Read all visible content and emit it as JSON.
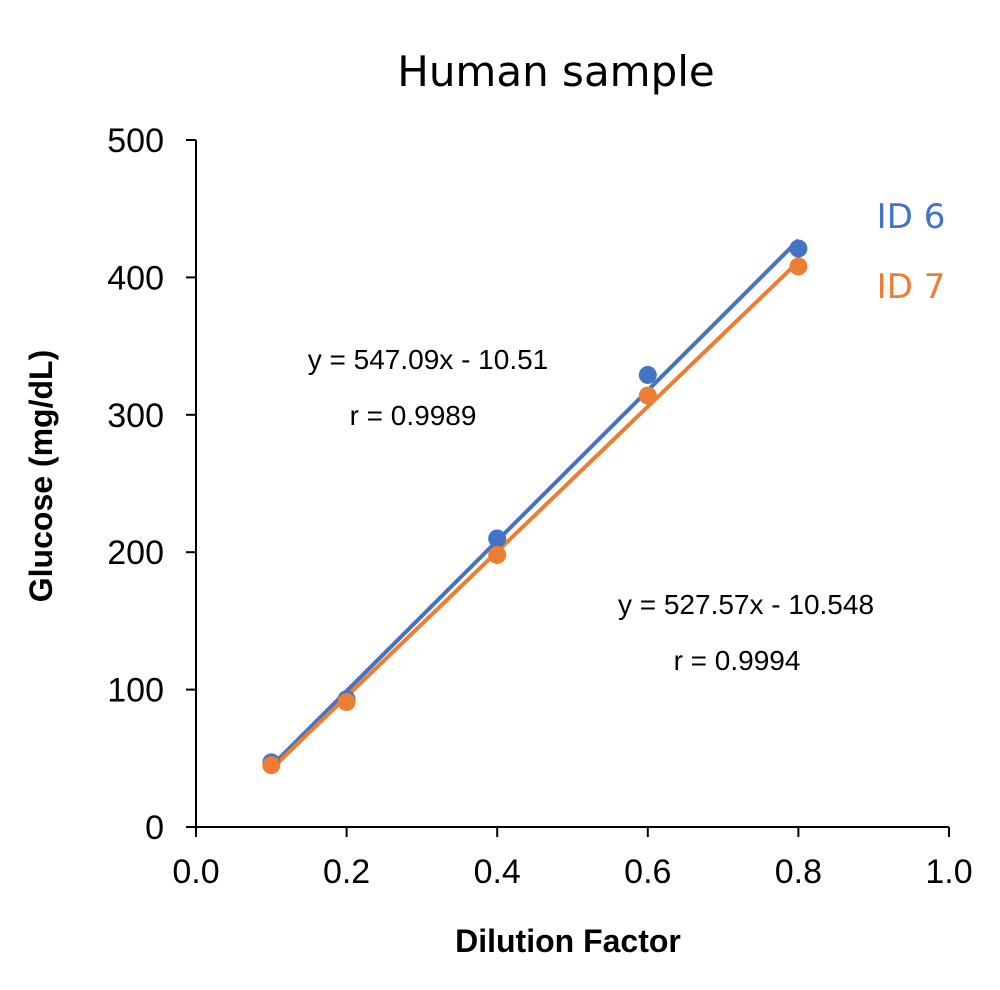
{
  "chart_data": {
    "type": "scatter",
    "title": "Human sample",
    "xlabel": "Dilution Factor",
    "ylabel": "Glucose (mg/dL)",
    "xlim": [
      0,
      1
    ],
    "ylim": [
      0,
      500
    ],
    "x_ticks": [
      "0.0",
      "0.2",
      "0.4",
      "0.6",
      "0.8",
      "1.0"
    ],
    "y_ticks": [
      "0",
      "100",
      "200",
      "300",
      "400",
      "500"
    ],
    "grid": false,
    "legend_placement": "right",
    "series": [
      {
        "name": "ID 6",
        "color": "#4472C4",
        "x": [
          0.1,
          0.2,
          0.4,
          0.6,
          0.8
        ],
        "y": [
          47,
          93,
          210,
          329,
          421
        ],
        "trendline": {
          "slope": 547.09,
          "intercept": -10.51
        },
        "equation": "y = 547.09x - 10.51",
        "r": "r = 0.9989"
      },
      {
        "name": "ID 7",
        "color": "#ED7D31",
        "x": [
          0.1,
          0.2,
          0.4,
          0.6,
          0.8
        ],
        "y": [
          45,
          91,
          198,
          314,
          408
        ],
        "trendline": {
          "slope": 527.57,
          "intercept": -10.548
        },
        "equation": "y = 527.57x - 10.548",
        "r": "r = 0.9994"
      }
    ]
  }
}
